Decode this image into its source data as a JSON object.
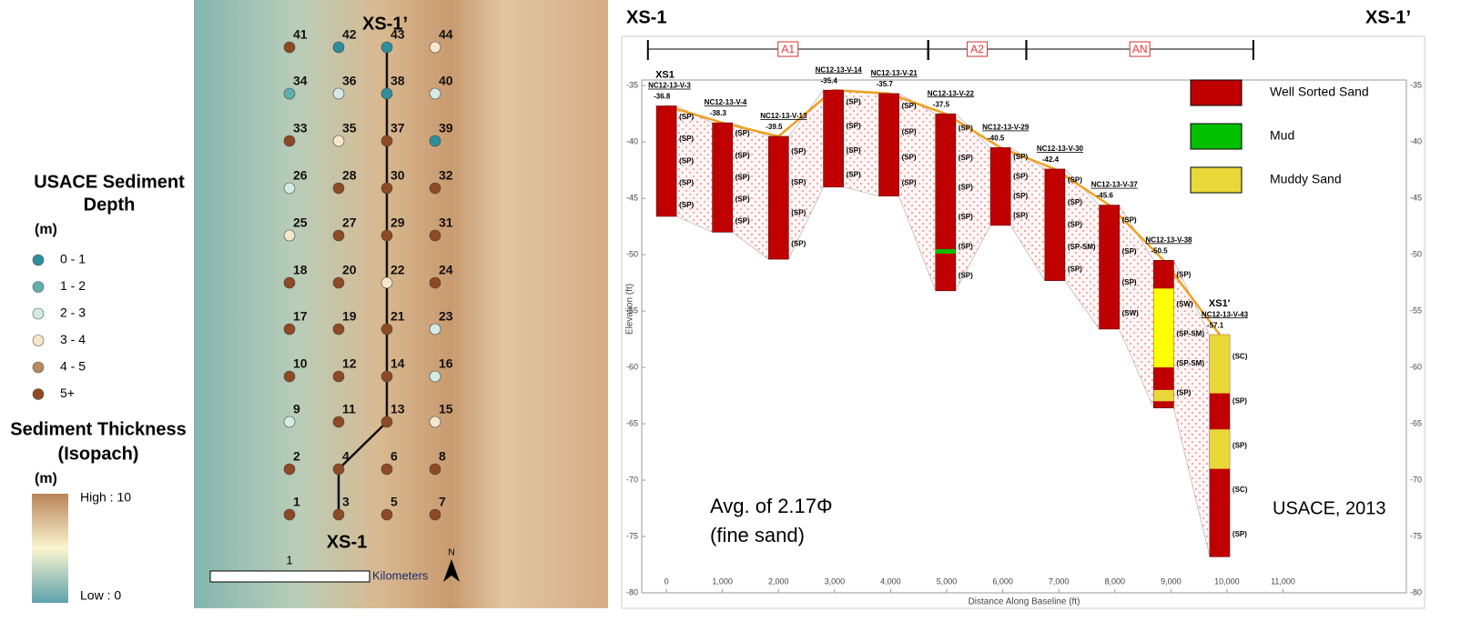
{
  "map": {
    "legend_title": [
      "USACE Sediment",
      "Depth"
    ],
    "legend_unit": "(m)",
    "legend": [
      {
        "label": "0 - 1",
        "color": "#2e8f9c"
      },
      {
        "label": "1 - 2",
        "color": "#5fb0ad"
      },
      {
        "label": "2 - 3",
        "color": "#d3ebe4"
      },
      {
        "label": "3 - 4",
        "color": "#f6e7cb"
      },
      {
        "label": "4 - 5",
        "color": "#b98a5e"
      },
      {
        "label": "5+",
        "color": "#8e4a22"
      }
    ],
    "isopach_title": [
      "Sediment Thickness",
      "(Isopach)"
    ],
    "isopach_unit": "(m)",
    "isopach_high": "High : 10",
    "isopach_low": "Low : 0",
    "scale_label": "1",
    "scale_unit": "Kilometers",
    "north": "N",
    "line_start": "XS-1",
    "line_end": "XS-1’",
    "rows": [
      [
        {
          "label": "41",
          "color": "#8e4a22"
        },
        {
          "label": "42",
          "color": "#2e8f9c"
        },
        {
          "label": "43",
          "color": "#2e8f9c"
        },
        {
          "label": "44",
          "color": "#f6e7cb"
        }
      ],
      [
        {
          "label": "34",
          "color": "#5fb0ad"
        },
        {
          "label": "36",
          "color": "#d3ebe4"
        },
        {
          "label": "38",
          "color": "#2e8f9c"
        },
        {
          "label": "40",
          "color": "#d3ebe4"
        }
      ],
      [
        {
          "label": "33",
          "color": "#8e4a22"
        },
        {
          "label": "35",
          "color": "#f6e7cb"
        },
        {
          "label": "37",
          "color": "#8e4a22"
        },
        {
          "label": "39",
          "color": "#2e8f9c"
        }
      ],
      [
        {
          "label": "26",
          "color": "#d3ebe4"
        },
        {
          "label": "28",
          "color": "#8e4a22"
        },
        {
          "label": "30",
          "color": "#8e4a22"
        },
        {
          "label": "32",
          "color": "#8e4a22"
        }
      ],
      [
        {
          "label": "25",
          "color": "#f6e7cb"
        },
        {
          "label": "27",
          "color": "#8e4a22"
        },
        {
          "label": "29",
          "color": "#8e4a22"
        },
        {
          "label": "31",
          "color": "#8e4a22"
        }
      ],
      [
        {
          "label": "18",
          "color": "#8e4a22"
        },
        {
          "label": "20",
          "color": "#8e4a22"
        },
        {
          "label": "22",
          "color": "#f6e7cb"
        },
        {
          "label": "24",
          "color": "#8e4a22"
        }
      ],
      [
        {
          "label": "17",
          "color": "#8e4a22"
        },
        {
          "label": "19",
          "color": "#8e4a22"
        },
        {
          "label": "21",
          "color": "#8e4a22"
        },
        {
          "label": "23",
          "color": "#d3ebe4"
        }
      ],
      [
        {
          "label": "10",
          "color": "#8e4a22"
        },
        {
          "label": "12",
          "color": "#8e4a22"
        },
        {
          "label": "14",
          "color": "#8e4a22"
        },
        {
          "label": "16",
          "color": "#d3ebe4"
        }
      ],
      [
        {
          "label": "9",
          "color": "#d3ebe4"
        },
        {
          "label": "11",
          "color": "#8e4a22"
        },
        {
          "label": "13",
          "color": "#8e4a22"
        },
        {
          "label": "15",
          "color": "#f6e7cb"
        }
      ],
      [
        {
          "label": "2",
          "color": "#8e4a22"
        },
        {
          "label": "4",
          "color": "#8e4a22"
        },
        {
          "label": "6",
          "color": "#8e4a22"
        },
        {
          "label": "8",
          "color": "#8e4a22"
        }
      ],
      [
        {
          "label": "1",
          "color": "#8e4a22"
        },
        {
          "label": "3",
          "color": "#8e4a22"
        },
        {
          "label": "5",
          "color": "#8e4a22"
        },
        {
          "label": "7",
          "color": "#8e4a22"
        }
      ]
    ]
  },
  "chart_data": {
    "type": "borehole",
    "title_left": "XS-1",
    "title_right": "XS-1’",
    "x_label": "Distance Along Baseline (ft)",
    "y_label": "Elevation (ft)",
    "xlim": [
      -440,
      13200
    ],
    "ylim": [
      -80,
      -34.5
    ],
    "xticks": [
      0,
      {
        "value": 1000,
        "label": "1,000"
      },
      {
        "value": 2000,
        "label": "2,000"
      },
      {
        "value": 3000,
        "label": "3,000"
      },
      {
        "value": 4000,
        "label": "4,000"
      },
      {
        "value": 5000,
        "label": "5,000"
      },
      {
        "value": 6000,
        "label": "6,000"
      },
      {
        "value": 7000,
        "label": "7,000"
      },
      {
        "value": 8000,
        "label": "8,000"
      },
      {
        "value": 9000,
        "label": "9,000"
      },
      {
        "value": 10000,
        "label": "10,000"
      },
      {
        "value": 11000,
        "label": "11,000"
      }
    ],
    "yticks": [
      -35,
      -40,
      -45,
      -50,
      -55,
      -60,
      -65,
      -70,
      -75,
      -80
    ],
    "sections": [
      {
        "label": "A1",
        "from": -330,
        "to": 4670
      },
      {
        "label": "A2",
        "from": 4670,
        "to": 6420
      },
      {
        "label": "AN",
        "from": 6420,
        "to": 10470
      }
    ],
    "color": "#c00000",
    "boreholes": [
      {
        "name": "NC12-13-V-3",
        "tag": "XS1",
        "x": 0,
        "top": -36.8,
        "bottom": -46.6,
        "layers": [
          "(SP)",
          "(SP)",
          "(SP)",
          "(SP)",
          "(SP)"
        ]
      },
      {
        "name": "NC12-13-V-4",
        "x": 1000,
        "top": -38.3,
        "bottom": -48,
        "layers": [
          "(SP)",
          "(SP)",
          "(SP)",
          "(SP)",
          "(SP)"
        ]
      },
      {
        "name": "NC12-13-V-13",
        "x": 2000,
        "top": -39.5,
        "bottom": -50.4,
        "layers": [
          "(SP)",
          "(SP)",
          "(SP)",
          "(SP)"
        ]
      },
      {
        "name": "NC12-13-V-14",
        "x": 2980,
        "top": -35.4,
        "bottom": -44,
        "layers": [
          "(SP)",
          "(SP)",
          "(SP)",
          "(SP)"
        ]
      },
      {
        "name": "NC12-13-V-21",
        "x": 3970,
        "top": -35.7,
        "bottom": -44.8,
        "layers": [
          "(SP)",
          "(SP)",
          "(SP)",
          "(SP)"
        ]
      },
      {
        "name": "NC12-13-V-22",
        "x": 4980,
        "top": -37.5,
        "bottom": -53.2,
        "layers": [
          "(SP)",
          "(SP)",
          "(SP)",
          "(SP)",
          "(SP)",
          "(SP)"
        ],
        "inserts": [
          {
            "from": -49.5,
            "to": -49.9,
            "color": "#00c000"
          }
        ]
      },
      {
        "name": "NC12-13-V-29",
        "x": 5960,
        "top": -40.5,
        "bottom": -47.4,
        "layers": [
          "(SP)",
          "(SP)",
          "(SP)",
          "(SP)"
        ]
      },
      {
        "name": "NC12-13-V-30",
        "x": 6930,
        "top": -42.4,
        "bottom": -52.3,
        "layers": [
          "(SP)",
          "(SP)",
          "(SP)",
          "(SP-SM)",
          "(SP)"
        ]
      },
      {
        "name": "NC12-13-V-37",
        "x": 7900,
        "top": -45.6,
        "bottom": -56.6,
        "layers": [
          "(SP)",
          "(SP)",
          "(SP)",
          "(SW)"
        ]
      },
      {
        "name": "NC12-13-V-38",
        "x": 8870,
        "top": -50.5,
        "bottom": -63.6,
        "layers": [
          "(SP)",
          "(SW)",
          "(SP-SM)",
          "(SP-SM)",
          "(SP)"
        ],
        "inserts": [
          {
            "from": -53,
            "to": -60,
            "color": "#ffff00"
          },
          {
            "from": -62,
            "to": -63,
            "color": "#e8d83a"
          }
        ]
      },
      {
        "name": "NC12-13-V-43",
        "tag": "XS1'",
        "x": 9870,
        "top": -57.1,
        "bottom": -76.8,
        "layers": [
          "(SC)",
          "(SP)",
          "(SP)",
          "(SC)",
          "(SP)"
        ],
        "inserts": [
          {
            "from": -57.1,
            "to": -62.3,
            "color": "#e8d83a"
          },
          {
            "from": -65.5,
            "to": -69,
            "color": "#e8d83a"
          }
        ]
      }
    ],
    "legend": [
      {
        "label": "Well Sorted Sand",
        "color": "#c00000"
      },
      {
        "label": "Mud",
        "color": "#00c000"
      },
      {
        "label": "Muddy Sand",
        "color": "#e8d83a"
      }
    ],
    "annotations": [
      "Avg. of 2.17Φ",
      "(fine sand)",
      "USACE, 2013"
    ]
  }
}
